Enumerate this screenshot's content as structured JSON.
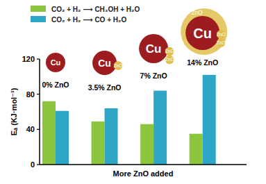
{
  "chart_data": {
    "type": "bar",
    "y_label": "Eₐ (KJ·mol⁻¹)",
    "x_label": "More ZnO added",
    "categories": [
      "0% ZnO",
      "3.5% ZnO",
      "7% ZnO",
      "14% ZnO"
    ],
    "series": [
      {
        "name": "CO₂ + H₂ ⟶ CH₃OH + H₂O",
        "color": "#8cc63e",
        "values": [
          72,
          49,
          46,
          35
        ]
      },
      {
        "name": "CO₂ + H₂ ⟶ CO + H₂O",
        "color": "#2fa6c6",
        "values": [
          61,
          64,
          84,
          102
        ]
      }
    ],
    "annotations": [
      [
        "Cu"
      ],
      [
        "Cu",
        "ZnO"
      ],
      [
        "Cu",
        "ZnO",
        "ZnO"
      ],
      [
        "ZnO",
        "Cu",
        "ZnO",
        "ZnO"
      ]
    ],
    "ylim": [
      0,
      120
    ],
    "yticks": [
      0,
      40,
      80,
      120
    ],
    "grid": false
  }
}
